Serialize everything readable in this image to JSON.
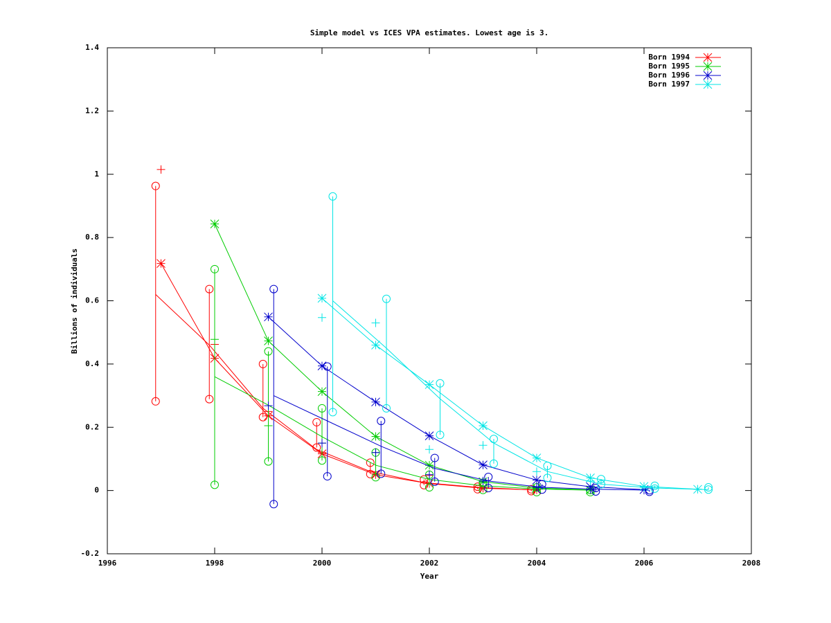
{
  "chart_data": {
    "type": "line",
    "title": "Simple model vs ICES VPA estimates. Lowest age is 3.",
    "x_label": "Year",
    "y_label": "Billions of individuals",
    "xlim": [
      1996,
      2008
    ],
    "xticks": [
      1996,
      1998,
      2000,
      2002,
      2004,
      2006,
      2008
    ],
    "ylim": [
      -0.2,
      1.4
    ],
    "yticks": [
      -0.2,
      0,
      0.2,
      0.4,
      0.6,
      0.8,
      1,
      1.2,
      1.4
    ],
    "legend": "top-right",
    "series": [
      {
        "name": "Born 1994",
        "color": "#ff0000",
        "x": [
          1997,
          1998,
          1999,
          2000,
          2001,
          2002,
          2003,
          2004
        ],
        "values": [
          0.718,
          0.418,
          0.236,
          0.116,
          0.05,
          0.022,
          0.007,
          0.002
        ],
        "plus_values": [
          1.015,
          0.462,
          0.25,
          0.12,
          0.06,
          0.048,
          0.01,
          0.003
        ],
        "bar_x": [
          1996.9,
          1997.9,
          1998.9,
          1999.9,
          2000.9,
          2001.9,
          2002.9,
          2003.9
        ],
        "mean": [
          0.62,
          0.46,
          0.26,
          0.13,
          0.06,
          0.025,
          0.01,
          0.002
        ],
        "low": [
          0.282,
          0.289,
          0.232,
          0.136,
          0.052,
          0.017,
          0.004,
          -0.002
        ],
        "high": [
          0.963,
          0.637,
          0.4,
          0.216,
          0.088,
          0.035,
          0.012,
          0.004
        ]
      },
      {
        "name": "Born 1995",
        "color": "#00cc00",
        "x": [
          1998,
          1999,
          2000,
          2001,
          2002,
          2003,
          2004,
          2005
        ],
        "values": [
          0.843,
          0.473,
          0.313,
          0.171,
          0.08,
          0.028,
          0.008,
          0.002
        ],
        "plus_values": [
          0.478,
          0.205,
          0.15,
          0.12,
          0.08,
          0.025,
          0.008,
          0.002
        ],
        "bar_x": [
          1998,
          1999,
          2000,
          2001,
          2002,
          2003,
          2004,
          2005
        ],
        "mean": [
          0.36,
          0.27,
          0.17,
          0.08,
          0.035,
          0.015,
          0.005,
          0.001
        ],
        "low": [
          0.018,
          0.092,
          0.095,
          0.042,
          0.01,
          0.002,
          -0.005,
          -0.005
        ],
        "high": [
          0.7,
          0.44,
          0.26,
          0.12,
          0.05,
          0.025,
          0.01,
          0.002
        ]
      },
      {
        "name": "Born 1996",
        "color": "#0000cc",
        "x": [
          1999,
          2000,
          2001,
          2002,
          2003,
          2004,
          2005,
          2006
        ],
        "values": [
          0.549,
          0.394,
          0.28,
          0.173,
          0.081,
          0.033,
          0.012,
          0.003
        ],
        "plus_values": [
          0.268,
          0.15,
          0.12,
          0.05,
          0.03,
          0.01,
          0.004,
          0.001
        ],
        "bar_x": [
          1999.1,
          2000.1,
          2001.1,
          2002.1,
          2003.1,
          2004.1,
          2005.1,
          2006.1
        ],
        "mean": [
          0.3,
          0.22,
          0.14,
          0.07,
          0.03,
          0.01,
          0.004,
          0.001
        ],
        "low": [
          -0.043,
          0.045,
          0.053,
          0.028,
          0.008,
          0.003,
          -0.003,
          -0.004
        ],
        "high": [
          0.637,
          0.392,
          0.22,
          0.103,
          0.043,
          0.02,
          0.008,
          0.001
        ]
      },
      {
        "name": "Born 1997",
        "color": "#00e5e5",
        "x": [
          2000,
          2001,
          2002,
          2003,
          2004,
          2005,
          2006,
          2007
        ],
        "values": [
          0.608,
          0.46,
          0.335,
          0.205,
          0.103,
          0.04,
          0.013,
          0.004
        ],
        "plus_values": [
          0.547,
          0.53,
          0.13,
          0.143,
          0.06,
          0.03,
          0.01,
          0.004
        ],
        "bar_x": [
          2000.2,
          2001.2,
          2002.2,
          2003.2,
          2004.2,
          2005.2,
          2006.2,
          2007.2
        ],
        "mean": [
          0.6,
          0.45,
          0.29,
          0.15,
          0.06,
          0.02,
          0.008,
          0.003
        ],
        "low": [
          0.248,
          0.26,
          0.176,
          0.085,
          0.04,
          0.02,
          0.006,
          0.003
        ],
        "high": [
          0.93,
          0.606,
          0.339,
          0.163,
          0.078,
          0.036,
          0.015,
          0.01
        ]
      }
    ]
  }
}
